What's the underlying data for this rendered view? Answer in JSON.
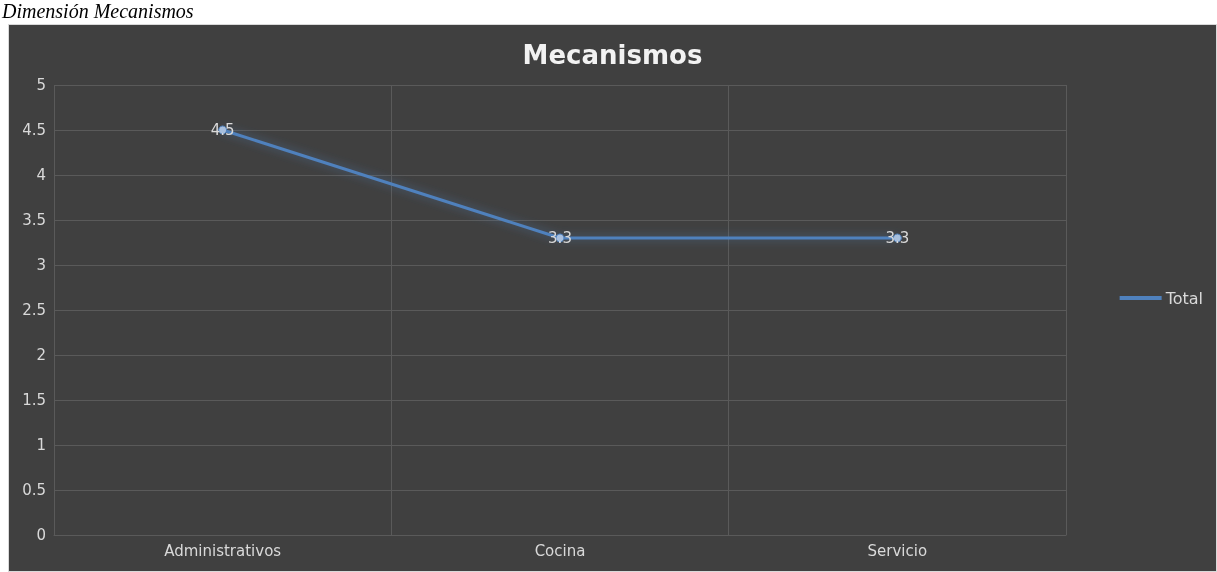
{
  "chart_data": {
    "type": "line",
    "title": "Mecanismos",
    "annotations": [
      "Dimensión Mecanismos"
    ],
    "categories": [
      "Administrativos",
      "Cocina",
      "Servicio"
    ],
    "series": [
      {
        "name": "Total",
        "color": "#4f81bd",
        "values": [
          4.5,
          3.3,
          3.3
        ]
      }
    ],
    "ylim": [
      0,
      5
    ],
    "yticks": [
      0,
      0.5,
      1,
      1.5,
      2,
      2.5,
      3,
      3.5,
      4,
      4.5,
      5
    ],
    "grid": true,
    "legend": "right",
    "marker": "circle",
    "line_style": "solid",
    "data_labels": true
  }
}
